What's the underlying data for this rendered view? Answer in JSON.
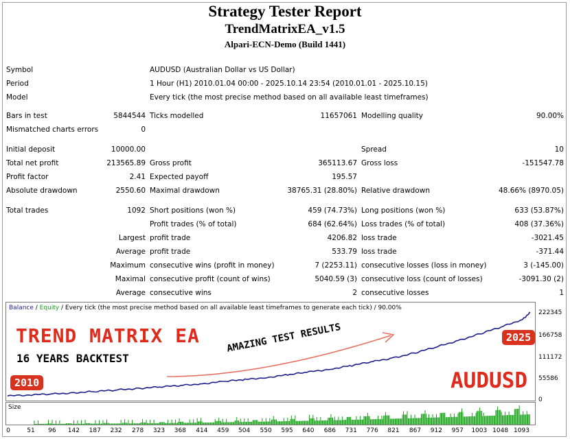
{
  "header": {
    "title": "Strategy Tester Report",
    "ea_name": "TrendMatrixEA_v1.5",
    "server": "Alpari-ECN-Demo (Build 1441)"
  },
  "report": {
    "symbol_label": "Symbol",
    "symbol_value": "AUDUSD (Australian Dollar vs US Dollar)",
    "period_label": "Period",
    "period_value": "1 Hour (H1) 2010.01.04 00:00 - 2025.10.14 23:54 (2010.01.01 - 2025.10.15)",
    "model_label": "Model",
    "model_value": "Every tick (the most precise method based on all available least timeframes)",
    "bars_label": "Bars in test",
    "bars_value": "5844544",
    "ticks_label": "Ticks modelled",
    "ticks_value": "11657061",
    "quality_label": "Modelling quality",
    "quality_value": "90.00%",
    "mismatch_label": "Mismatched charts errors",
    "mismatch_value": "0",
    "deposit_label": "Initial deposit",
    "deposit_value": "10000.00",
    "spread_label": "Spread",
    "spread_value": "10",
    "net_label": "Total net profit",
    "net_value": "213565.89",
    "gross_profit_label": "Gross profit",
    "gross_profit_value": "365113.67",
    "gross_loss_label": "Gross loss",
    "gross_loss_value": "-151547.78",
    "pf_label": "Profit factor",
    "pf_value": "2.41",
    "ep_label": "Expected payoff",
    "ep_value": "195.57",
    "abs_dd_label": "Absolute drawdown",
    "abs_dd_value": "2550.60",
    "max_dd_label": "Maximal drawdown",
    "max_dd_value": "38765.31 (28.80%)",
    "rel_dd_label": "Relative drawdown",
    "rel_dd_value": "48.66% (8970.05)",
    "trades_label": "Total trades",
    "trades_value": "1092",
    "short_label": "Short positions (won %)",
    "short_value": "459 (74.73%)",
    "long_label": "Long positions (won %)",
    "long_value": "633 (53.87%)",
    "profit_trades_label": "Profit trades (% of total)",
    "profit_trades_value": "684 (62.64%)",
    "loss_trades_label": "Loss trades (% of total)",
    "loss_trades_value": "408 (37.36%)",
    "largest_label": "Largest",
    "largest_profit_label": "profit trade",
    "largest_profit_value": "4206.82",
    "largest_loss_label": "loss trade",
    "largest_loss_value": "-3021.45",
    "average_label": "Average",
    "average_profit_label": "profit trade",
    "average_profit_value": "533.79",
    "average_loss_label": "loss trade",
    "average_loss_value": "-371.44",
    "maximum_label": "Maximum",
    "max_wins_label": "consecutive wins (profit in money)",
    "max_wins_value": "7 (2253.11)",
    "max_losses_label": "consecutive losses (loss in money)",
    "max_losses_value": "3 (-145.00)",
    "maximal_label": "Maximal",
    "maximal_profit_label": "consecutive profit (count of wins)",
    "maximal_profit_value": "5040.59 (3)",
    "maximal_loss_label": "consecutive loss (count of losses)",
    "maximal_loss_value": "-3091.30 (2)",
    "avg_label2": "Average",
    "avg_wins_label": "consecutive wins",
    "avg_wins_value": "2",
    "avg_losses_label": "consecutive losses",
    "avg_losses_value": "1"
  },
  "chart_legend": {
    "balance": "Balance",
    "sep": " / ",
    "equity": "Equity",
    "rest": " / Every tick (the most precise method based on all available least timeframes to generate each tick) / 90.00%"
  },
  "overlay": {
    "title": "TREND MATRIX EA",
    "subtitle": "16 YEARS BACKTEST",
    "start_year": "2010",
    "end_year": "2025",
    "amazing": "AMAZING TEST RESULTS",
    "pair": "AUDUSD"
  },
  "size_label": "Size",
  "colors": {
    "balance": "#1c1c8c",
    "equity": "#18a018",
    "accent": "#e02b1c",
    "size_bars": "#12a012"
  },
  "chart_data": {
    "type": "line",
    "y_ticks": [
      "222345",
      "166758",
      "111172",
      "55586",
      "0"
    ],
    "x_ticks": [
      "0",
      "51",
      "96",
      "142",
      "187",
      "232",
      "278",
      "323",
      "368",
      "414",
      "459",
      "504",
      "550",
      "595",
      "640",
      "686",
      "731",
      "776",
      "821",
      "867",
      "912",
      "957",
      "1003",
      "1048",
      "1093"
    ],
    "ylim": [
      0,
      230000
    ],
    "xlim": [
      0,
      1120
    ],
    "series": [
      {
        "values_x": [
          0,
          51,
          96,
          142,
          187,
          232,
          278,
          323,
          368,
          414,
          459,
          504,
          550,
          595,
          640,
          686,
          731,
          776,
          821,
          867,
          912,
          957,
          1003,
          1048,
          1093,
          1110
        ],
        "values_y": [
          10000,
          13000,
          15000,
          18500,
          21500,
          25500,
          29500,
          33000,
          37000,
          41500,
          47000,
          52000,
          57500,
          64000,
          71500,
          79000,
          88000,
          98000,
          108000,
          121000,
          136000,
          152000,
          169000,
          186500,
          206000,
          223565
        ]
      }
    ]
  }
}
